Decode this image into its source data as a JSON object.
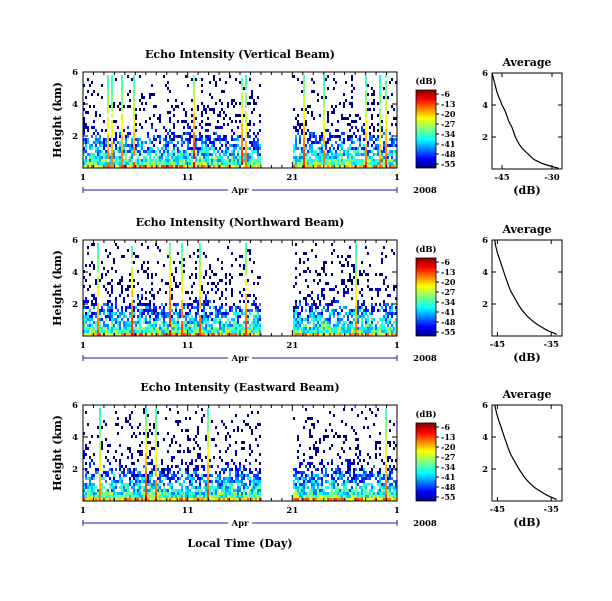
{
  "chart_data": [
    {
      "type": "heatmap",
      "title": "Echo Intensity (Vertical Beam)",
      "ylabel": "Height (km)",
      "yticks": [
        "2",
        "4",
        "6"
      ],
      "ylim": [
        0,
        6
      ],
      "xticks": [
        "1",
        "11",
        "21",
        "1"
      ],
      "month": "Apr",
      "year": "2008",
      "xlim": [
        1,
        31
      ],
      "data_gap": [
        18.0,
        21.0
      ],
      "colorbar": {
        "unit": "(dB)",
        "ticks": [
          "-6",
          "-13",
          "-20",
          "-27",
          "-34",
          "-41",
          "-48",
          "-55"
        ],
        "range": [
          -55,
          -6
        ]
      }
    },
    {
      "type": "heatmap",
      "title": "Echo Intensity (Northward Beam)",
      "ylabel": "Height (km)",
      "yticks": [
        "2",
        "4",
        "6"
      ],
      "ylim": [
        0,
        6
      ],
      "xticks": [
        "1",
        "11",
        "21",
        "1"
      ],
      "month": "Apr",
      "year": "2008",
      "xlim": [
        1,
        31
      ],
      "data_gap": [
        18.0,
        21.0
      ],
      "colorbar": {
        "unit": "(dB)",
        "ticks": [
          "-6",
          "-13",
          "-20",
          "-27",
          "-34",
          "-41",
          "-48",
          "-55"
        ],
        "range": [
          -55,
          -6
        ]
      }
    },
    {
      "type": "heatmap",
      "title": "Echo Intensity (Eastward Beam)",
      "ylabel": "Height (km)",
      "yticks": [
        "2",
        "4",
        "6"
      ],
      "ylim": [
        0,
        6
      ],
      "xticks": [
        "1",
        "11",
        "21",
        "1"
      ],
      "month": "Apr",
      "year": "2008",
      "xlabel": "Local Time (Day)",
      "xlim": [
        1,
        31
      ],
      "data_gap": [
        18.0,
        21.0
      ],
      "colorbar": {
        "unit": "(dB)",
        "ticks": [
          "-6",
          "-13",
          "-20",
          "-27",
          "-34",
          "-41",
          "-48",
          "-55"
        ],
        "range": [
          -55,
          -6
        ]
      }
    },
    {
      "type": "line",
      "title": "Average",
      "xlabel": "(dB)",
      "xticks": [
        "-45",
        "-30"
      ],
      "yticks": [
        "2",
        "4",
        "6"
      ],
      "xlim": [
        -48,
        -27
      ],
      "ylim": [
        0,
        6
      ],
      "x": [
        -48,
        -47.5,
        -47,
        -46.5,
        -46,
        -45.5,
        -45,
        -44.5,
        -44,
        -43.5,
        -43,
        -42.5,
        -42,
        -41.5,
        -41,
        -40.5,
        -40,
        -39.5,
        -39,
        -38.5,
        -38,
        -37.5,
        -37,
        -36.5,
        -36,
        -35.5,
        -35,
        -34,
        -33,
        -32,
        -31,
        -30,
        -29,
        -28
      ],
      "y": [
        6.0,
        5.6,
        5.2,
        4.8,
        4.5,
        4.3,
        4.0,
        3.8,
        3.6,
        3.3,
        3.0,
        2.8,
        2.6,
        2.3,
        2.0,
        1.8,
        1.6,
        1.45,
        1.3,
        1.2,
        1.1,
        1.0,
        0.9,
        0.8,
        0.7,
        0.62,
        0.55,
        0.45,
        0.35,
        0.28,
        0.22,
        0.15,
        0.1,
        0.05
      ]
    },
    {
      "type": "line",
      "title": "Average",
      "xlabel": "(dB)",
      "xticks": [
        "-45",
        "-35"
      ],
      "yticks": [
        "2",
        "4",
        "6"
      ],
      "xlim": [
        -46,
        -33
      ],
      "ylim": [
        0,
        6
      ],
      "x": [
        -45.5,
        -45.3,
        -45,
        -44.6,
        -44.2,
        -43.8,
        -43.4,
        -43,
        -42.5,
        -42,
        -41.5,
        -41,
        -40.5,
        -40,
        -39.5,
        -39,
        -38.5,
        -38,
        -37.5,
        -37,
        -36.5,
        -36,
        -35.5,
        -35,
        -34.5,
        -34
      ],
      "y": [
        6.0,
        5.6,
        5.2,
        4.8,
        4.4,
        4.0,
        3.6,
        3.2,
        2.8,
        2.5,
        2.2,
        1.9,
        1.65,
        1.45,
        1.25,
        1.1,
        0.95,
        0.82,
        0.7,
        0.6,
        0.5,
        0.4,
        0.32,
        0.25,
        0.18,
        0.1
      ]
    },
    {
      "type": "line",
      "title": "Average",
      "xlabel": "(dB)",
      "xticks": [
        "-45",
        "-35"
      ],
      "yticks": [
        "2",
        "4",
        "6"
      ],
      "xlim": [
        -46,
        -33
      ],
      "ylim": [
        0,
        6
      ],
      "x": [
        -45.5,
        -45.3,
        -45,
        -44.6,
        -44.2,
        -43.8,
        -43.4,
        -43,
        -42.5,
        -42,
        -41.5,
        -41,
        -40.5,
        -40,
        -39.5,
        -39,
        -38.5,
        -38,
        -37.5,
        -37,
        -36.5,
        -36,
        -35.5,
        -35,
        -34.5,
        -34
      ],
      "y": [
        6.0,
        5.7,
        5.3,
        4.9,
        4.5,
        4.1,
        3.7,
        3.3,
        2.9,
        2.6,
        2.3,
        2.0,
        1.75,
        1.5,
        1.3,
        1.12,
        0.96,
        0.82,
        0.7,
        0.6,
        0.5,
        0.4,
        0.32,
        0.24,
        0.17,
        0.1
      ]
    }
  ]
}
